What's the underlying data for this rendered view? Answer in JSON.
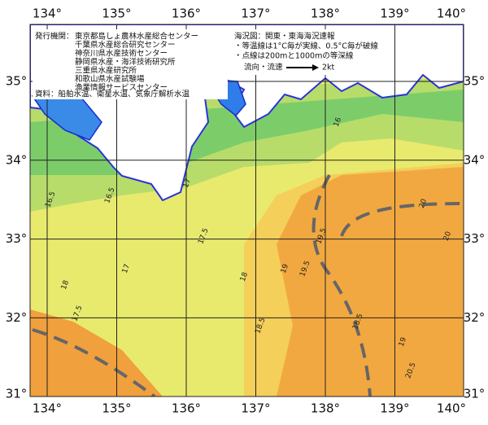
{
  "lon_labels": [
    "134°",
    "135°",
    "136°",
    "137°",
    "138°",
    "139°",
    "140°"
  ],
  "lat_labels": [
    "35°",
    "34°",
    "33°",
    "32°",
    "31°"
  ],
  "info_left": {
    "issuer_label": "発行機関：",
    "issuers": [
      "東京都島しょ農林水産総合センター",
      "千葉県水産総合研究センター",
      "神奈川県水産技術センター",
      "静岡県水産・海洋技術研究所",
      "三重県水産研究所",
      "和歌山県水産試験場",
      "漁業情報サービスセンター"
    ],
    "source": "資料：船舶水温、衛星水温、気象庁解析水温"
  },
  "info_right": {
    "title": "海況図：関東・東海海況速報",
    "notes": [
      "・等温線は1°C毎が実線、0.5°C毎が破線",
      "・点線は200mと1000mの等深線"
    ],
    "flow_label": "流向・流速",
    "flow_speed": "2kt"
  },
  "contour_labels": [
    "16.5",
    "17",
    "17.5",
    "18",
    "18.5",
    "19",
    "19.5",
    "20",
    "20.5",
    "16",
    "16.5",
    "17",
    "17.5",
    "18",
    "18.5",
    "19",
    "19.5",
    "20"
  ]
}
